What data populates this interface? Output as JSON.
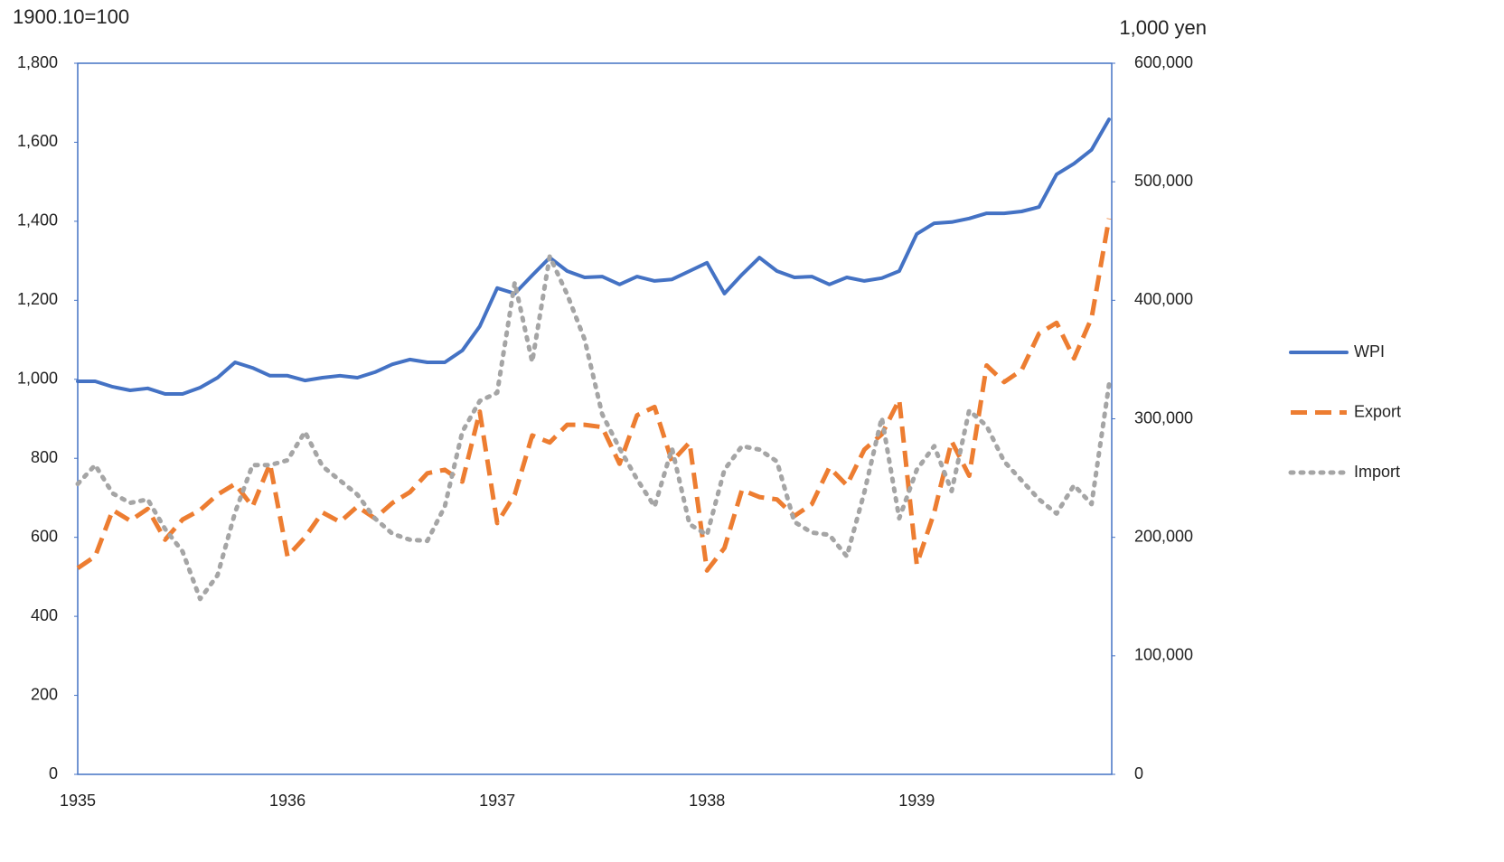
{
  "chart_data": {
    "type": "line",
    "ylabel": "1900.10=100",
    "y2label": "1,000 yen",
    "categories": [
      "1935",
      null,
      null,
      null,
      null,
      null,
      null,
      null,
      null,
      null,
      null,
      null,
      "1936",
      null,
      null,
      null,
      null,
      null,
      null,
      null,
      null,
      null,
      null,
      null,
      "1937",
      null,
      null,
      null,
      null,
      null,
      null,
      null,
      null,
      null,
      null,
      null,
      "1938",
      null,
      null,
      null,
      null,
      null,
      null,
      null,
      null,
      null,
      null,
      null,
      "1939",
      null,
      null,
      null,
      null,
      null,
      null,
      null,
      null,
      null,
      null,
      null
    ],
    "ylim": [
      0,
      1800
    ],
    "yticks": [
      0,
      200,
      400,
      600,
      800,
      {
        "value": 1000,
        "label": "1,000"
      },
      {
        "value": 1200,
        "label": "1,200"
      },
      {
        "value": 1400,
        "label": "1,400"
      },
      {
        "value": 1600,
        "label": "1,600"
      },
      {
        "value": 1800,
        "label": "1,800"
      }
    ],
    "y2lim": [
      0,
      600000
    ],
    "y2ticks": [
      0,
      {
        "value": 100000,
        "label": "100,000"
      },
      {
        "value": 200000,
        "label": "200,000"
      },
      {
        "value": 300000,
        "label": "300,000"
      },
      {
        "value": 400000,
        "label": "400,000"
      },
      {
        "value": 500000,
        "label": "500,000"
      },
      {
        "value": 600000,
        "label": "600,000"
      }
    ],
    "legend": "right",
    "series": [
      {
        "name": "WPI",
        "color": "#4472c4",
        "line_style": "solid",
        "values": [
          995,
          995,
          981,
          972,
          977,
          963,
          963,
          979,
          1004,
          1043,
          1029,
          1009,
          1009,
          997,
          1004,
          1009,
          1004,
          1018,
          1038,
          1050,
          1043,
          1043,
          1073,
          1134,
          1231,
          1217,
          1263,
          1308,
          1274,
          1258,
          1260,
          1240,
          1260,
          1249,
          1253,
          1274,
          1295,
          1217,
          1265,
          1308,
          1274,
          1258,
          1260,
          1240,
          1258,
          1249,
          1256,
          1274,
          1368,
          1395,
          1398,
          1407,
          1420,
          1420,
          1425,
          1436,
          1519,
          1546,
          1581,
          1658
        ]
      },
      {
        "name": "Export",
        "color": "#ed7d31",
        "line_style": "dashed",
        "axis": "y2",
        "values": [
          174000,
          184000,
          223000,
          214000,
          224000,
          198000,
          215000,
          223000,
          236000,
          245000,
          226000,
          262000,
          184000,
          200000,
          221000,
          213000,
          226000,
          216000,
          229000,
          238000,
          254000,
          257000,
          247000,
          306000,
          212000,
          236000,
          286000,
          280000,
          295000,
          295000,
          293000,
          262000,
          303000,
          310000,
          264000,
          280000,
          172000,
          191000,
          240000,
          234000,
          232000,
          218000,
          228000,
          259000,
          244000,
          274000,
          287000,
          316000,
          177000,
          221000,
          281000,
          252000,
          345000,
          331000,
          341000,
          372000,
          381000,
          351000,
          385000,
          469000
        ]
      },
      {
        "name": "Import",
        "color": "#a5a5a5",
        "line_style": "dotted",
        "axis": "y2",
        "values": [
          245000,
          261000,
          237000,
          229000,
          232000,
          207000,
          188000,
          148000,
          168000,
          221000,
          261000,
          261000,
          265000,
          289000,
          260000,
          248000,
          236000,
          216000,
          203000,
          198000,
          197000,
          226000,
          289000,
          315000,
          322000,
          415000,
          348000,
          437000,
          405000,
          367000,
          304000,
          275000,
          249000,
          226000,
          275000,
          211000,
          202000,
          257000,
          277000,
          274000,
          264000,
          213000,
          204000,
          202000,
          184000,
          238000,
          301000,
          216000,
          257000,
          277000,
          239000,
          307000,
          294000,
          264000,
          248000,
          232000,
          220000,
          244000,
          228000,
          329000
        ]
      }
    ]
  }
}
